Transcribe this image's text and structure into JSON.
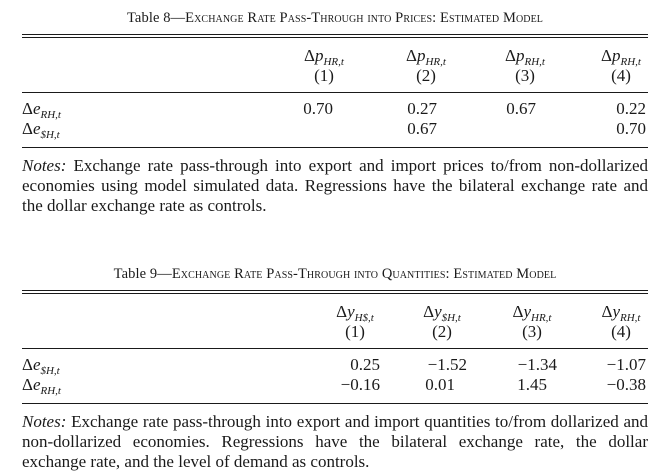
{
  "table8": {
    "caption_prefix": "Table 8—",
    "caption_title": "Exchange Rate Pass-Through into Prices: Estimated Model",
    "columns": [
      {
        "delta": "Δ",
        "var": "p",
        "sub": "HR,t",
        "num": "(1)"
      },
      {
        "delta": "Δ",
        "var": "p",
        "sub": "HR,t",
        "num": "(2)"
      },
      {
        "delta": "Δ",
        "var": "p",
        "sub": "RH,t",
        "num": "(3)"
      },
      {
        "delta": "Δ",
        "var": "p",
        "sub": "RH,t",
        "num": "(4)"
      }
    ],
    "rows": [
      {
        "delta": "Δ",
        "var": "e",
        "sub": "RH,t",
        "values": [
          "0.70",
          "0.27",
          "0.67",
          "0.22"
        ]
      },
      {
        "delta": "Δ",
        "var": "e",
        "sub": "$H,t",
        "values": [
          "",
          "0.67",
          "",
          "0.70"
        ]
      }
    ],
    "notes_label": "Notes:",
    "notes_text": "Exchange rate pass-through into export and import prices to/from non-dollarized economies using model simulated data. Regressions have the bilateral exchange rate and the dollar exchange rate as controls."
  },
  "table9": {
    "caption_prefix": "Table 9—",
    "caption_title": "Exchange Rate Pass-Through into Quantities: Estimated Model",
    "columns": [
      {
        "delta": "Δ",
        "var": "y",
        "sub": "H$,t",
        "num": "(1)"
      },
      {
        "delta": "Δ",
        "var": "y",
        "sub": "$H,t",
        "num": "(2)"
      },
      {
        "delta": "Δ",
        "var": "y",
        "sub": "HR,t",
        "num": "(3)"
      },
      {
        "delta": "Δ",
        "var": "y",
        "sub": "RH,t",
        "num": "(4)"
      }
    ],
    "rows": [
      {
        "delta": "Δ",
        "var": "e",
        "sub": "$H,t",
        "values": [
          "0.25",
          "−1.52",
          "−1.34",
          "−1.07"
        ]
      },
      {
        "delta": "Δ",
        "var": "e",
        "sub": "RH,t",
        "values": [
          "−0.16",
          "0.01",
          "1.45",
          "−0.38"
        ]
      }
    ],
    "notes_label": "Notes:",
    "notes_text": "Exchange rate pass-through into export and import quantities to/from dollarized and non-dollarized economies. Regressions have the bilateral exchange rate, the dollar exchange rate, and the level of demand as controls."
  }
}
